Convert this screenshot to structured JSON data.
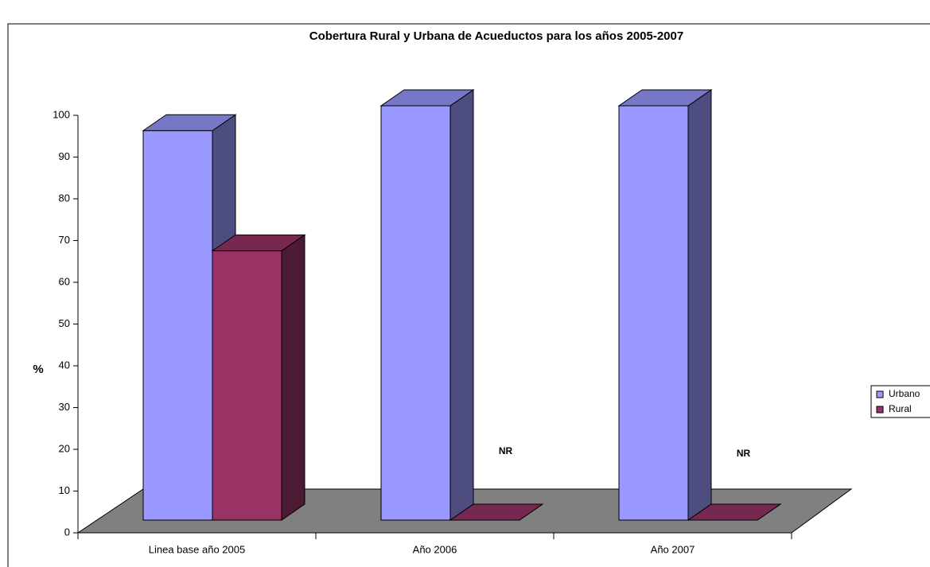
{
  "chart_data": {
    "type": "bar3d",
    "title": "Cobertura Rural y Urbana de Acueductos para los años 2005-2007",
    "y_label": "%",
    "categories": [
      "Linea base año 2005",
      "Año 2006",
      "Año 2007"
    ],
    "series": [
      {
        "name": "Urbano",
        "color": "#9999ff",
        "values": [
          94,
          100,
          100
        ]
      },
      {
        "name": "Rural",
        "color": "#993366",
        "values": [
          65,
          0,
          0
        ],
        "value_labels": [
          null,
          "NR",
          "NR"
        ]
      }
    ],
    "ylim": [
      0,
      100
    ],
    "yticks": [
      0,
      10,
      20,
      30,
      40,
      50,
      60,
      70,
      80,
      90,
      100
    ],
    "legend": "right"
  }
}
